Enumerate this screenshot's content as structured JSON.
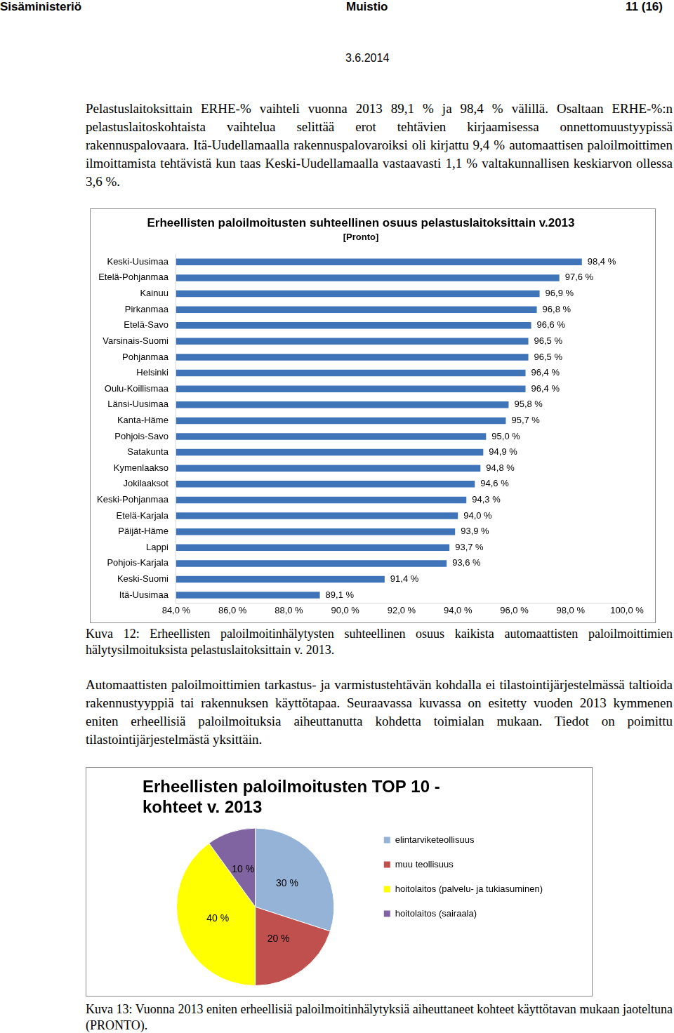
{
  "header": {
    "organization": "Sisäministeriö",
    "document_type": "Muistio",
    "page": "11 (16)",
    "date": "3.6.2014"
  },
  "paragraphs": [
    "Pelastuslaitoksittain ERHE-% vaihteli vuonna 2013 89,1 % ja 98,4 % välillä. Osaltaan ERHE-%:n pelastuslaitoskohtaista vaihtelua selittää erot tehtävien kirjaamisessa onnettomuustyypissä rakennuspalovaara. Itä-Uudellamaalla rakennuspalovaroiksi oli kirjattu 9,4 % automaattisen paloilmoittimen ilmoittamista tehtävistä kun taas Keski-Uudellamaalla vastaavasti 1,1 % valtakunnallisen keskiarvon ollessa 3,6 %.",
    "Automaattisten paloilmoittimien tarkastus- ja varmistustehtävän kohdalla ei tilastointijärjestelmässä taltioida rakennustyyppiä tai rakennuksen käyttötapaa. Seuraavassa kuvassa on esitetty vuoden 2013 kymmenen eniten erheellisiä paloilmoituksia aiheuttanutta kohdetta toimialan mukaan. Tiedot on poimittu tilastointijärjestelmästä yksittäin."
  ],
  "captions": [
    "Kuva 12: Erheellisten paloilmoitinhälytysten suhteellinen osuus kaikista automaattisten paloilmoittimien hälytysilmoituksista pelastuslaitoksittain v. 2013.",
    "Kuva 13: Vuonna 2013 eniten erheellisiä paloilmoitinhälytyksiä aiheuttaneet kohteet käyttötavan mukaan jaoteltuna (PRONTO)."
  ],
  "chart_data": [
    {
      "type": "bar",
      "title": "Erheellisten paloilmoitusten suhteellinen osuus pelastuslaitoksittain v.2013",
      "subtitle": "[Pronto]",
      "orientation": "horizontal",
      "categories": [
        "Keski-Uusimaa",
        "Etelä-Pohjanmaa",
        "Kainuu",
        "Pirkanmaa",
        "Etelä-Savo",
        "Varsinais-Suomi",
        "Pohjanmaa",
        "Helsinki",
        "Oulu-Koillismaa",
        "Länsi-Uusimaa",
        "Kanta-Häme",
        "Pohjois-Savo",
        "Satakunta",
        "Kymenlaakso",
        "Jokilaaksot",
        "Keski-Pohjanmaa",
        "Etelä-Karjala",
        "Päijät-Häme",
        "Lappi",
        "Pohjois-Karjala",
        "Keski-Suomi",
        "Itä-Uusimaa"
      ],
      "values": [
        98.4,
        97.6,
        96.9,
        96.8,
        96.6,
        96.5,
        96.5,
        96.4,
        96.4,
        95.8,
        95.7,
        95.0,
        94.9,
        94.8,
        94.6,
        94.3,
        94.0,
        93.9,
        93.7,
        93.6,
        91.4,
        89.1
      ],
      "value_labels": [
        "98,4 %",
        "97,6 %",
        "96,9 %",
        "96,8 %",
        "96,6 %",
        "96,5 %",
        "96,5 %",
        "96,4 %",
        "96,4 %",
        "95,8 %",
        "95,7 %",
        "95,0 %",
        "94,9 %",
        "94,8 %",
        "94,6 %",
        "94,3 %",
        "94,0 %",
        "93,9 %",
        "93,7 %",
        "93,6 %",
        "91,4 %",
        "89,1 %"
      ],
      "data_labels": true,
      "color": "#3f74b8",
      "xlim": [
        84,
        100
      ],
      "xticks": [
        {
          "value": 84,
          "label": "84,0 %"
        },
        {
          "value": 86,
          "label": "86,0 %"
        },
        {
          "value": 88,
          "label": "88,0 %"
        },
        {
          "value": 90,
          "label": "90,0 %"
        },
        {
          "value": 92,
          "label": "92,0 %"
        },
        {
          "value": 94,
          "label": "94,0 %"
        },
        {
          "value": 96,
          "label": "96,0 %"
        },
        {
          "value": 98,
          "label": "98,0 %"
        },
        {
          "value": 100,
          "label": "100,0 %"
        }
      ],
      "grid": false
    },
    {
      "type": "pie",
      "title": [
        "Erheellisten paloilmoitusten TOP 10 -",
        "kohteet v. 2013"
      ],
      "categories": [
        "elintarviketeollisuus",
        "muu teollisuus",
        "hoitolaitos (palvelu- ja tukiasuminen)",
        "hoitolaitos (sairaala)"
      ],
      "values": [
        30,
        20,
        40,
        10
      ],
      "value_labels": [
        "30 %",
        "20 %",
        "40 %",
        "10 %"
      ],
      "data_labels": true,
      "colors": [
        "#95b3d7",
        "#c0504d",
        "#ffff00",
        "#8064a2"
      ],
      "legend": "right"
    }
  ]
}
